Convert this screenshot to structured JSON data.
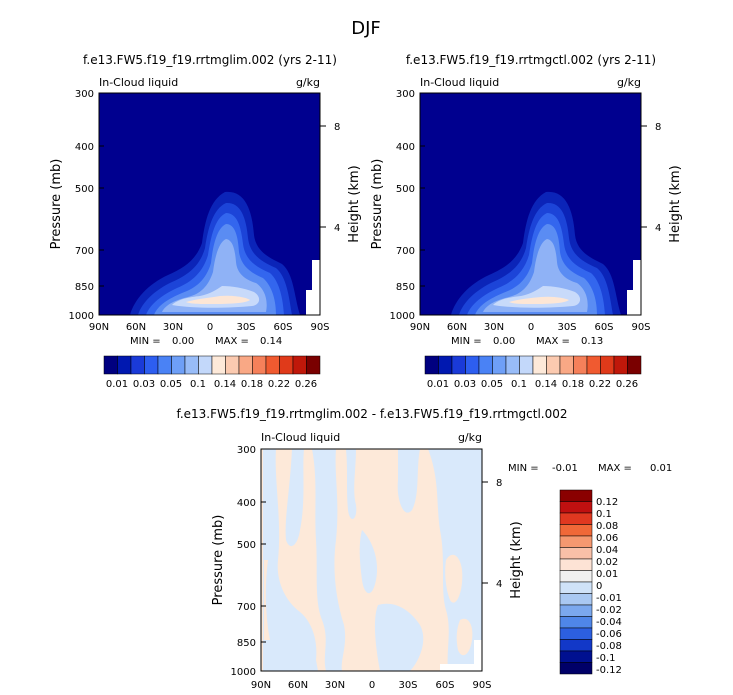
{
  "figure_title": "DJF",
  "chart_data": [
    {
      "type": "heatmap",
      "title": "f.e13.FW5.f19_f19.rrtmglim.002 (yrs 2-11)",
      "variable": "In-Cloud liquid",
      "units": "g/kg",
      "xlabel": "",
      "ylabel": "Pressure (mb)",
      "ylabel_right": "Height (km)",
      "x_ticks": [
        "90N",
        "60N",
        "30N",
        "0",
        "30S",
        "60S",
        "90S"
      ],
      "y_ticks": [
        "300",
        "400",
        "500",
        "700",
        "850",
        "1000"
      ],
      "y_right_ticks": [
        "8",
        "4"
      ],
      "ylim": [
        1000,
        300
      ],
      "min_label": "MIN =",
      "min_value": "0.00",
      "max_label": "MAX =",
      "max_value": "0.14",
      "colorbar_labels": [
        "0.01",
        "0.03",
        "0.05",
        "0.1",
        "0.14",
        "0.18",
        "0.22",
        "0.26"
      ]
    },
    {
      "type": "heatmap",
      "title": "f.e13.FW5.f19_f19.rrtmgctl.002 (yrs 2-11)",
      "variable": "In-Cloud liquid",
      "units": "g/kg",
      "xlabel": "",
      "ylabel": "Pressure (mb)",
      "ylabel_right": "Height (km)",
      "x_ticks": [
        "90N",
        "60N",
        "30N",
        "0",
        "30S",
        "60S",
        "90S"
      ],
      "y_ticks": [
        "300",
        "400",
        "500",
        "700",
        "850",
        "1000"
      ],
      "y_right_ticks": [
        "8",
        "4"
      ],
      "ylim": [
        1000,
        300
      ],
      "min_label": "MIN =",
      "min_value": "0.00",
      "max_label": "MAX =",
      "max_value": "0.13",
      "colorbar_labels": [
        "0.01",
        "0.03",
        "0.05",
        "0.1",
        "0.14",
        "0.18",
        "0.22",
        "0.26"
      ]
    },
    {
      "type": "heatmap",
      "title": "f.e13.FW5.f19_f19.rrtmglim.002 - f.e13.FW5.f19_f19.rrtmgctl.002",
      "variable": "In-Cloud liquid",
      "units": "g/kg",
      "xlabel": "",
      "ylabel": "Pressure (mb)",
      "ylabel_right": "Height (km)",
      "x_ticks": [
        "90N",
        "60N",
        "30N",
        "0",
        "30S",
        "60S",
        "90S"
      ],
      "y_ticks": [
        "300",
        "400",
        "500",
        "700",
        "850",
        "1000"
      ],
      "y_right_ticks": [
        "8",
        "4"
      ],
      "ylim": [
        1000,
        300
      ],
      "min_label": "MIN =",
      "min_value": "-0.01",
      "max_label": "MAX =",
      "max_value": "0.01",
      "colorbar_labels": [
        "0.12",
        "0.1",
        "0.08",
        "0.06",
        "0.04",
        "0.02",
        "0.01",
        "0",
        "-0.01",
        "-0.02",
        "-0.04",
        "-0.06",
        "-0.08",
        "-0.1",
        "-0.12"
      ]
    }
  ],
  "colors": {
    "background_field": "#00008f",
    "seq_colorbar": [
      "#000080",
      "#0018b0",
      "#1a3ad8",
      "#2d5ef0",
      "#4a82f5",
      "#6e9ff7",
      "#98bcf8",
      "#c3d8fa",
      "#fde9d9",
      "#fbcab0",
      "#f9a885",
      "#f5805a",
      "#f05a30",
      "#e03a1a",
      "#c0180a",
      "#7a0000"
    ],
    "div_colorbar": [
      "#8a0000",
      "#c01010",
      "#e03820",
      "#f06838",
      "#f59870",
      "#f9c0a8",
      "#fde3d5",
      "#f0f0f0",
      "#cfe2f8",
      "#a9c8f2",
      "#7ba8ee",
      "#4f86e8",
      "#2c5fe0",
      "#1238c8",
      "#001090",
      "#000068"
    ],
    "diff_pos": "#fde9d9",
    "diff_neg": "#d9e9fb"
  }
}
